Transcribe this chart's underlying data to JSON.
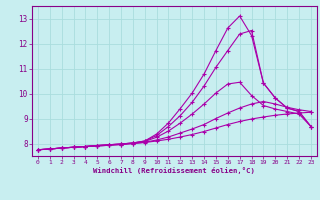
{
  "xlabel": "Windchill (Refroidissement éolien,°C)",
  "bg_color": "#c8eef0",
  "line_color": "#aa00aa",
  "grid_color": "#aadddd",
  "axis_color": "#880088",
  "xlim": [
    -0.5,
    23.5
  ],
  "ylim": [
    7.5,
    13.5
  ],
  "xticks": [
    0,
    1,
    2,
    3,
    4,
    5,
    6,
    7,
    8,
    9,
    10,
    11,
    12,
    13,
    14,
    15,
    16,
    17,
    18,
    19,
    20,
    21,
    22,
    23
  ],
  "yticks": [
    8,
    9,
    10,
    11,
    12,
    13
  ],
  "lines_x": [
    [
      0,
      1,
      2,
      3,
      4,
      5,
      6,
      7,
      8,
      9,
      10,
      11,
      12,
      13,
      14,
      15,
      16,
      17,
      18,
      19,
      20,
      21,
      22,
      23
    ],
    [
      0,
      1,
      2,
      3,
      4,
      5,
      6,
      7,
      8,
      9,
      10,
      11,
      12,
      13,
      14,
      15,
      16,
      17,
      18,
      19,
      20,
      21,
      22,
      23
    ],
    [
      0,
      1,
      2,
      3,
      4,
      5,
      6,
      7,
      8,
      9,
      10,
      11,
      12,
      13,
      14,
      15,
      16,
      17,
      18,
      19,
      20,
      21,
      22,
      23
    ],
    [
      0,
      1,
      2,
      3,
      4,
      5,
      6,
      7,
      8,
      9,
      10,
      11,
      12,
      13,
      14,
      15,
      16,
      17,
      18,
      19,
      20,
      21,
      22,
      23
    ],
    [
      0,
      1,
      2,
      3,
      4,
      5,
      6,
      7,
      8,
      9,
      10,
      11,
      12,
      13,
      14,
      15,
      16,
      17,
      18,
      19,
      20,
      21,
      22,
      23
    ]
  ],
  "lines_y": [
    [
      7.75,
      7.78,
      7.82,
      7.85,
      7.88,
      7.9,
      7.93,
      7.96,
      8.0,
      8.04,
      8.1,
      8.17,
      8.26,
      8.36,
      8.48,
      8.62,
      8.76,
      8.88,
      8.98,
      9.06,
      9.13,
      9.18,
      9.22,
      9.25
    ],
    [
      7.75,
      7.78,
      7.82,
      7.85,
      7.88,
      7.9,
      7.93,
      7.96,
      8.0,
      8.05,
      8.14,
      8.26,
      8.42,
      8.58,
      8.76,
      9.0,
      9.22,
      9.42,
      9.58,
      9.68,
      9.58,
      9.45,
      9.35,
      9.28
    ],
    [
      7.75,
      7.78,
      7.82,
      7.85,
      7.88,
      7.92,
      7.95,
      7.98,
      8.02,
      8.08,
      8.25,
      8.5,
      8.82,
      9.18,
      9.58,
      10.02,
      10.38,
      10.45,
      9.92,
      9.52,
      9.38,
      9.28,
      9.18,
      8.68
    ],
    [
      7.75,
      7.78,
      7.82,
      7.85,
      7.88,
      7.92,
      7.95,
      7.98,
      8.02,
      8.1,
      8.32,
      8.68,
      9.12,
      9.65,
      10.3,
      11.05,
      11.72,
      12.38,
      12.52,
      10.42,
      9.82,
      9.42,
      9.28,
      8.68
    ],
    [
      7.75,
      7.78,
      7.82,
      7.85,
      7.88,
      7.92,
      7.95,
      7.98,
      8.02,
      8.1,
      8.38,
      8.82,
      9.4,
      10.02,
      10.78,
      11.72,
      12.62,
      13.1,
      12.32,
      10.42,
      9.82,
      9.42,
      9.28,
      8.68
    ]
  ]
}
